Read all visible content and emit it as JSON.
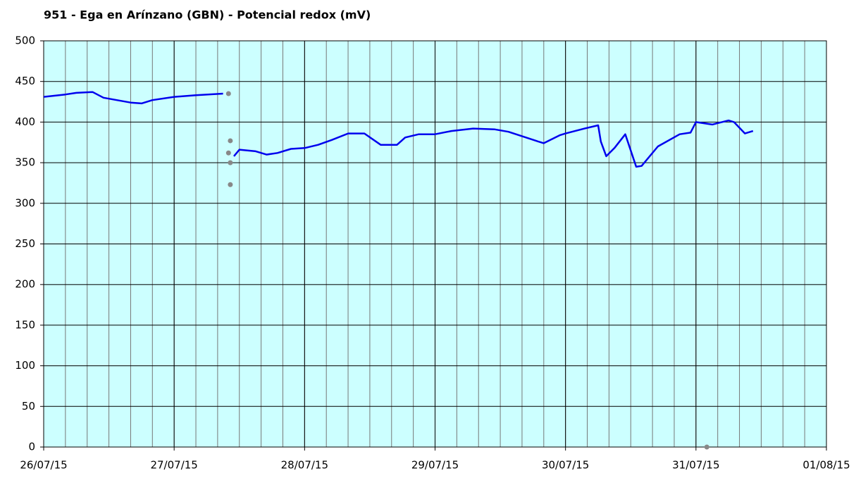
{
  "chart_data": {
    "type": "line",
    "title": "951 - Ega en Arínzano (GBN) - Potencial redox (mV)",
    "background": "#ccffff",
    "grid": true,
    "xlim": [
      "2015-07-26T00:00",
      "2015-08-01T00:00"
    ],
    "xticks": [
      {
        "value": "2015-07-26T00:00",
        "label": "26/07/15"
      },
      {
        "value": "2015-07-27T00:00",
        "label": "27/07/15"
      },
      {
        "value": "2015-07-28T00:00",
        "label": "28/07/15"
      },
      {
        "value": "2015-07-29T00:00",
        "label": "29/07/15"
      },
      {
        "value": "2015-07-30T00:00",
        "label": "30/07/15"
      },
      {
        "value": "2015-07-31T00:00",
        "label": "31/07/15"
      },
      {
        "value": "2015-08-01T00:00",
        "label": "01/08/15"
      }
    ],
    "ylim": [
      0,
      500
    ],
    "yticks": [
      0,
      50,
      100,
      150,
      200,
      250,
      300,
      350,
      400,
      450,
      500
    ],
    "series": [
      {
        "style": "line",
        "color": "#0000ee",
        "x": [
          "2015-07-26T00:00",
          "2015-07-26T04:00",
          "2015-07-26T06:00",
          "2015-07-26T09:00",
          "2015-07-26T11:00",
          "2015-07-26T16:00",
          "2015-07-26T18:00",
          "2015-07-26T20:00",
          "2015-07-27T00:00",
          "2015-07-27T04:00",
          "2015-07-27T09:00",
          "2015-07-27T10:00",
          "2015-07-27T11:00",
          "2015-07-27T12:00",
          "2015-07-27T15:00",
          "2015-07-27T17:00",
          "2015-07-27T19:00",
          "2015-07-27T21:30",
          "2015-07-28T00:00",
          "2015-07-28T02:30",
          "2015-07-28T05:00",
          "2015-07-28T08:00",
          "2015-07-28T11:00",
          "2015-07-28T14:00",
          "2015-07-28T17:00",
          "2015-07-28T18:30",
          "2015-07-28T21:00",
          "2015-07-29T00:00",
          "2015-07-29T03:00",
          "2015-07-29T07:00",
          "2015-07-29T11:00",
          "2015-07-29T13:30",
          "2015-07-29T19:00",
          "2015-07-29T20:00",
          "2015-07-29T23:00",
          "2015-07-30T00:00",
          "2015-07-30T03:30",
          "2015-07-30T06:00",
          "2015-07-30T06:30",
          "2015-07-30T07:30",
          "2015-07-30T09:00",
          "2015-07-30T11:00",
          "2015-07-30T12:30",
          "2015-07-30T13:00",
          "2015-07-30T14:00",
          "2015-07-30T17:00",
          "2015-07-30T21:00",
          "2015-07-30T23:00",
          "2015-07-31T00:00",
          "2015-07-31T03:00",
          "2015-07-31T06:00",
          "2015-07-31T07:00",
          "2015-07-31T09:00",
          "2015-07-31T10:30"
        ],
        "values": [
          431,
          434,
          436,
          437,
          430,
          424,
          423,
          427,
          431,
          433,
          435,
          null,
          358,
          366,
          364,
          360,
          362,
          367,
          368,
          372,
          378,
          386,
          386,
          372,
          372,
          381,
          385,
          385,
          389,
          392,
          391,
          388,
          376,
          374,
          384,
          386,
          392,
          396,
          376,
          358,
          368,
          385,
          355,
          345,
          346,
          370,
          385,
          387,
          400,
          397,
          402,
          400,
          386,
          389
        ]
      },
      {
        "style": "points",
        "color": "#888888",
        "x": [
          "2015-07-27T10:00",
          "2015-07-27T10:20",
          "2015-07-27T10:00",
          "2015-07-27T10:20",
          "2015-07-27T10:20",
          "2015-07-31T02:00"
        ],
        "values": [
          435,
          377,
          362,
          350,
          323,
          0
        ]
      }
    ]
  }
}
